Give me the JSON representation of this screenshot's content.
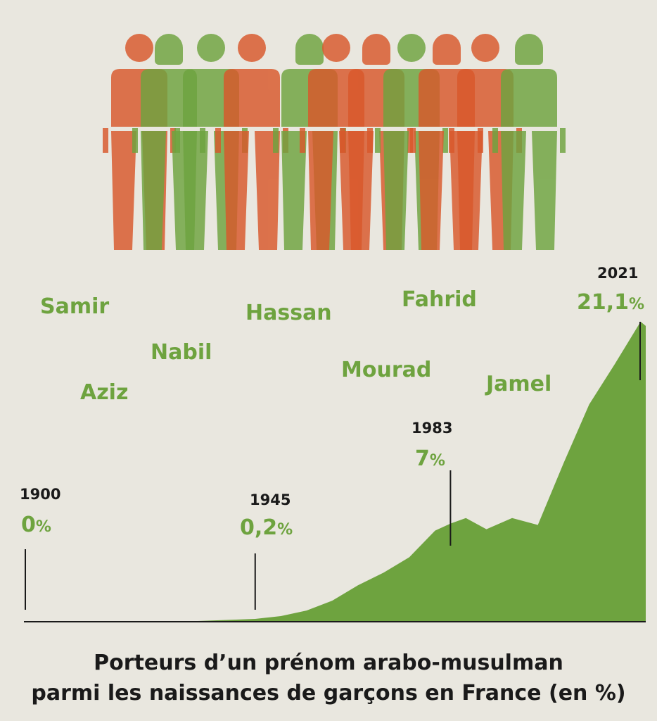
{
  "colors": {
    "accent_green": "#6ea33f",
    "accent_orange": "#d9582b",
    "background": "#e9e7df",
    "ink": "#1a1a1a"
  },
  "illustration": {
    "icon": "people-crowd-icon"
  },
  "names": [
    "Samir",
    "Nabil",
    "Aziz",
    "Hassan",
    "Mourad",
    "Fahrid",
    "Jamel"
  ],
  "chart_data": {
    "type": "area",
    "title": "Porteurs d’un prénom arabo-musulman",
    "subtitle": "parmi les naissances de garçons en France (en %)",
    "x": [
      1900,
      1930,
      1945,
      1950,
      1955,
      1960,
      1965,
      1970,
      1975,
      1980,
      1983,
      1986,
      1990,
      1995,
      2000,
      2005,
      2010,
      2015,
      2020,
      2021
    ],
    "y": [
      0,
      0,
      0.2,
      0.4,
      0.8,
      1.5,
      2.6,
      3.5,
      4.6,
      6.5,
      7,
      7.4,
      6.6,
      7.4,
      6.9,
      11.3,
      15.5,
      18.4,
      21.4,
      21.1
    ],
    "xlim": [
      1900,
      2021
    ],
    "ylim": [
      0,
      22
    ],
    "annotations": [
      {
        "year": "1900",
        "value": "0",
        "unit": "%"
      },
      {
        "year": "1945",
        "value": "0,2",
        "unit": "%"
      },
      {
        "year": "1983",
        "value": "7",
        "unit": "%"
      },
      {
        "year": "2021",
        "value": "21,1",
        "unit": "%"
      }
    ]
  }
}
